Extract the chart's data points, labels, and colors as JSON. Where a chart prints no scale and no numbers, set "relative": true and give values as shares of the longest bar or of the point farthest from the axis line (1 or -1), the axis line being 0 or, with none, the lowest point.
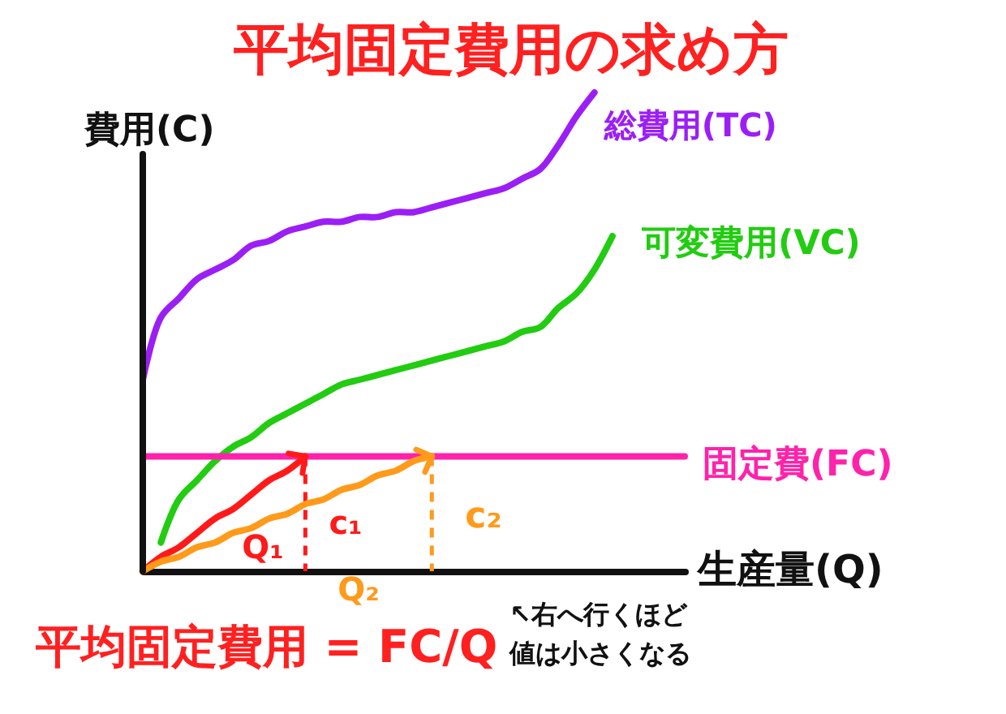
{
  "chart_data": {
    "type": "line",
    "title": "平均固定費用の求め方",
    "xlabel": "生産量(Q)",
    "ylabel": "費用(C)",
    "relative": true,
    "categories": [
      null,
      null,
      null,
      null,
      null,
      null,
      null,
      null,
      null,
      null,
      null,
      null,
      null,
      null,
      null,
      null,
      null,
      null,
      null,
      null,
      null,
      null,
      null,
      null,
      null,
      null,
      null,
      null,
      null,
      null,
      null
    ],
    "series": [
      {
        "name": "総費用(TC)",
        "color": "#9b1ff5",
        "values": [
          0.4,
          0.53,
          0.57,
          0.61,
          0.63,
          0.65,
          0.68,
          0.69,
          0.71,
          0.72,
          0.73,
          0.73,
          0.74,
          0.74,
          0.75,
          0.75,
          0.76,
          0.77,
          0.78,
          0.79,
          0.8,
          0.82,
          0.84,
          0.89,
          0.95,
          1.0,
          null,
          null,
          null,
          null,
          null
        ]
      },
      {
        "name": "可変費用(VC)",
        "color": "#22cc11",
        "values": [
          null,
          0.06,
          0.15,
          0.19,
          0.23,
          0.26,
          0.28,
          0.31,
          0.33,
          0.35,
          0.37,
          0.39,
          0.4,
          0.41,
          0.42,
          0.43,
          0.44,
          0.45,
          0.46,
          0.47,
          0.48,
          0.5,
          0.51,
          0.55,
          0.58,
          0.63,
          0.7,
          null,
          null,
          null,
          null
        ]
      },
      {
        "name": "固定費(FC)",
        "color": "#ff22aa",
        "values": [
          0.24,
          0.24,
          0.24,
          0.24,
          0.24,
          0.24,
          0.24,
          0.24,
          0.24,
          0.24,
          0.24,
          0.24,
          0.24,
          0.24,
          0.24,
          0.24,
          0.24,
          0.24,
          0.24,
          0.24,
          0.24,
          0.24,
          0.24,
          0.24,
          0.24,
          0.24,
          0.24,
          0.24,
          0.24,
          0.24,
          0.24
        ]
      },
      {
        "color": "#ff1a1a",
        "values": [
          0,
          0.03,
          0.05,
          0.08,
          0.11,
          0.13,
          0.16,
          0.19,
          0.21,
          0.24,
          null,
          null,
          null,
          null,
          null,
          null,
          null,
          null,
          null,
          null,
          null,
          null,
          null,
          null,
          null,
          null,
          null,
          null,
          null,
          null,
          null
        ]
      },
      {
        "color": "#ff9a1a",
        "values": [
          0,
          0.02,
          0.03,
          0.05,
          0.06,
          0.08,
          0.09,
          0.11,
          0.12,
          0.14,
          0.15,
          0.17,
          0.18,
          0.2,
          0.21,
          0.23,
          0.24,
          null,
          null,
          null,
          null,
          null,
          null,
          null,
          null,
          null,
          null,
          null,
          null,
          null,
          null
        ]
      }
    ],
    "annotations": [
      "c₁",
      "c₂",
      "Q₁",
      "Q₂",
      "平均固定費用 = FC/Q",
      "↖右へ行くほど値は小さくなる"
    ]
  }
}
